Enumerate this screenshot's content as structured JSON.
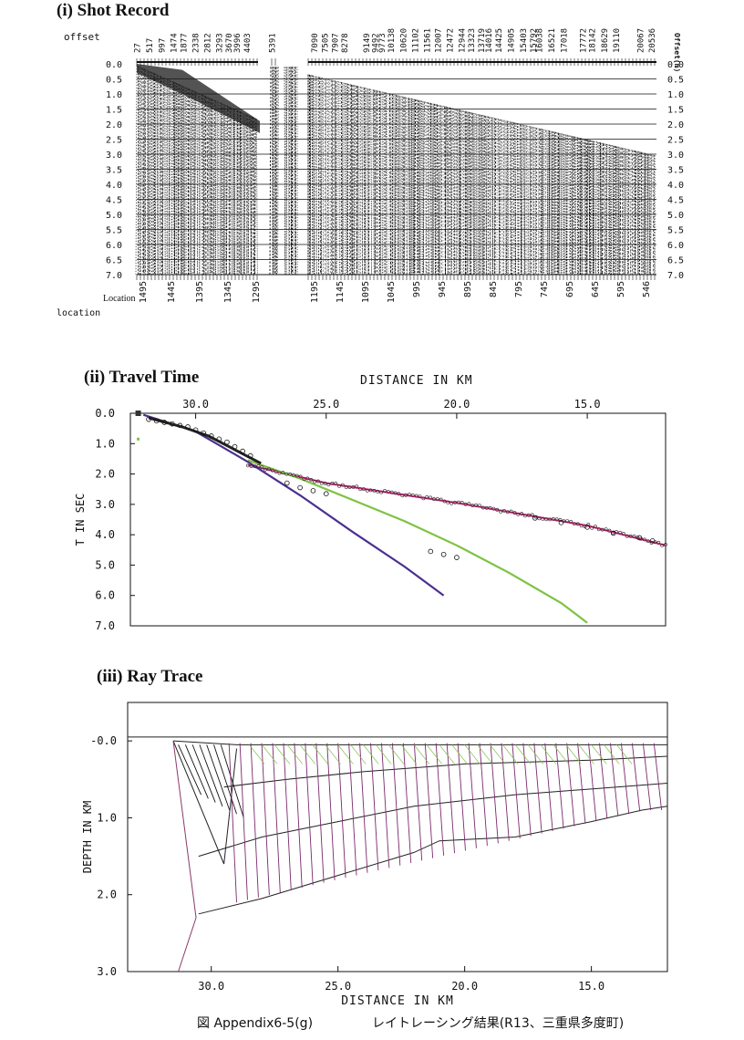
{
  "shot_record": {
    "title": "(i) Shot Record",
    "offset_label": "offset",
    "offset_right_label": "Offset(m)",
    "location_label": "Location",
    "location_label_lower": "location",
    "time_ticks": [
      "0.0",
      "0.5",
      "1.0",
      "1.5",
      "2.0",
      "2.5",
      "3.0",
      "3.5",
      "4.0",
      "4.5",
      "5.0",
      "5.5",
      "6.0",
      "6.5",
      "7.0"
    ],
    "offsets": [
      "27",
      "517",
      "997",
      "1474",
      "1877",
      "2338",
      "2812",
      "3293",
      "3670",
      "3996",
      "4403",
      "5391",
      "7090",
      "7505",
      "7907",
      "8278",
      "9149",
      "9492",
      "9773",
      "10138",
      "10620",
      "11102",
      "11561",
      "12007",
      "12472",
      "12944",
      "13323",
      "13719",
      "14016",
      "14425",
      "14905",
      "15403",
      "15792",
      "16038",
      "16521",
      "17018",
      "17772",
      "18142",
      "18629",
      "19110",
      "20067",
      "20536"
    ],
    "locations": [
      "1495",
      "1445",
      "1395",
      "1345",
      "1295",
      "1195",
      "1145",
      "1095",
      "1045",
      "995",
      "945",
      "895",
      "845",
      "795",
      "745",
      "695",
      "645",
      "595",
      "546"
    ]
  },
  "travel_time": {
    "title": "(ii) Travel Time",
    "xlabel": "DISTANCE IN KM",
    "ylabel": "T IN SEC",
    "x_ticks": [
      "30.0",
      "25.0",
      "20.0",
      "15.0"
    ],
    "y_ticks": [
      "0.0",
      "1.0",
      "2.0",
      "3.0",
      "4.0",
      "5.0",
      "6.0",
      "7.0"
    ]
  },
  "ray_trace": {
    "title": "(iii) Ray Trace",
    "xlabel": "DISTANCE IN KM",
    "ylabel": "DEPTH IN KM",
    "x_ticks": [
      "30.0",
      "25.0",
      "20.0",
      "15.0"
    ],
    "y_ticks": [
      "-0.0",
      "1.0",
      "2.0",
      "3.0"
    ]
  },
  "caption": {
    "figure": "図 Appendix6-5(g)",
    "description": "レイトレーシング結果(R13、三重県多度町)"
  },
  "chart_data": [
    {
      "type": "line",
      "title": "(ii) Travel Time",
      "xlabel": "DISTANCE IN KM",
      "ylabel": "T IN SEC",
      "xlim": [
        32.5,
        12.0
      ],
      "ylim": [
        7.0,
        0.0
      ],
      "series": [
        {
          "color": "#e0338a",
          "x": [
            28.0,
            25.0,
            20.0,
            15.0,
            12.0
          ],
          "y": [
            1.7,
            2.3,
            2.95,
            3.7,
            4.35
          ]
        },
        {
          "color": "#7dc242",
          "x": [
            28.0,
            26.0,
            24.0,
            22.0,
            20.0,
            18.0,
            16.0,
            15.0
          ],
          "y": [
            1.55,
            2.15,
            2.85,
            3.55,
            4.35,
            5.25,
            6.25,
            6.9
          ]
        },
        {
          "color": "#4b2f8f",
          "x": [
            32.0,
            30.0,
            28.0,
            26.0,
            24.0,
            22.0,
            20.5
          ],
          "y": [
            0.05,
            0.6,
            1.6,
            2.7,
            3.9,
            5.05,
            6.0
          ]
        },
        {
          "color": "#222222",
          "x": [
            31.8,
            30.5,
            29.5,
            28.5,
            27.5
          ],
          "y": [
            0.15,
            0.45,
            0.75,
            1.2,
            1.65
          ]
        }
      ],
      "observed_points": {
        "x": [
          31.8,
          31.5,
          31.2,
          30.9,
          30.6,
          30.3,
          30.0,
          29.7,
          29.4,
          29.1,
          28.8,
          28.5,
          28.2,
          27.9,
          26.5,
          26.0,
          25.5,
          25.0,
          21.0,
          20.5,
          20.0,
          17.0,
          16.0,
          15.0,
          14.0,
          13.0,
          12.5
        ],
        "y": [
          0.2,
          0.25,
          0.3,
          0.35,
          0.4,
          0.45,
          0.55,
          0.65,
          0.75,
          0.85,
          0.95,
          1.1,
          1.25,
          1.4,
          2.3,
          2.45,
          2.55,
          2.65,
          4.55,
          4.65,
          4.75,
          3.45,
          3.6,
          3.75,
          3.95,
          4.1,
          4.2
        ]
      }
    },
    {
      "type": "line",
      "title": "(iii) Ray Trace",
      "xlabel": "DISTANCE IN KM",
      "ylabel": "DEPTH IN KM",
      "xlim": [
        33.3,
        12.0
      ],
      "ylim": [
        3.0,
        -0.5
      ],
      "interfaces": [
        {
          "x": [
            33.3,
            31.5,
            12.0
          ],
          "y": [
            -0.05,
            -0.05,
            -0.05
          ]
        },
        {
          "x": [
            31.5,
            29.0,
            25.0,
            20.0,
            15.0,
            12.0
          ],
          "y": [
            0.0,
            0.05,
            0.05,
            0.05,
            0.05,
            0.05
          ]
        },
        {
          "x": [
            29.5,
            27.0,
            24.0,
            20.0,
            15.0,
            12.0
          ],
          "y": [
            0.6,
            0.5,
            0.4,
            0.3,
            0.25,
            0.2
          ]
        },
        {
          "x": [
            30.5,
            28.0,
            25.0,
            22.0,
            18.0,
            14.0,
            12.0
          ],
          "y": [
            1.5,
            1.25,
            1.05,
            0.85,
            0.7,
            0.6,
            0.55
          ]
        },
        {
          "x": [
            30.5,
            28.0,
            25.0,
            22.0,
            21.0,
            18.0,
            15.0,
            13.0,
            12.0
          ],
          "y": [
            2.25,
            2.05,
            1.75,
            1.45,
            1.3,
            1.25,
            1.05,
            0.9,
            0.85
          ]
        }
      ]
    }
  ]
}
